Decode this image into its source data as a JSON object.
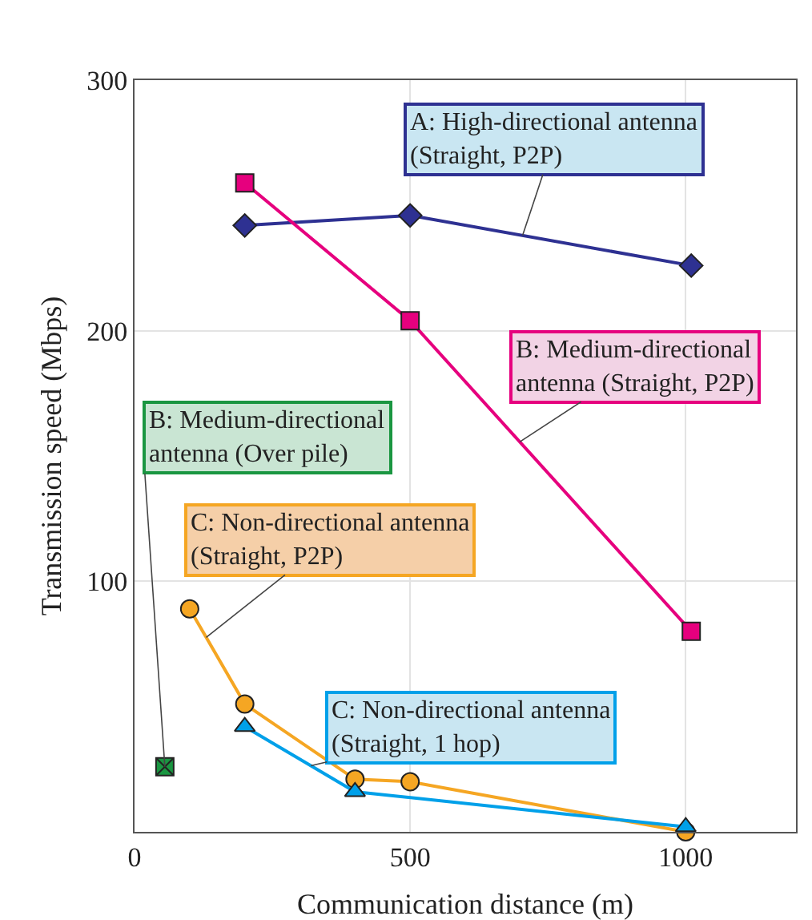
{
  "chart_data": {
    "type": "line",
    "xlabel": "Communication distance (m)",
    "ylabel": "Transmission speed (Mbps)",
    "xlim": [
      0,
      1200
    ],
    "xticks": [
      0,
      500,
      1000
    ],
    "ylim": [
      0,
      300
    ],
    "yticks": [
      100,
      200,
      300
    ],
    "grid": true,
    "legend": false,
    "series": [
      {
        "name": "A: High-directional antenna\n(Straight, P2P)",
        "color": "#2e3192",
        "marker": "diamond",
        "x": [
          200,
          500,
          1010
        ],
        "values": [
          242,
          246,
          226
        ]
      },
      {
        "name": "B: Medium-directional\nantenna (Straight, P2P)",
        "color": "#e6007e",
        "marker": "square",
        "x": [
          200,
          500,
          1010
        ],
        "values": [
          259,
          204,
          80
        ]
      },
      {
        "name": "B: Medium-directional\nantenna (Over pile)",
        "color": "#1a9641",
        "marker": "cross",
        "x": [
          55
        ],
        "values": [
          26
        ]
      },
      {
        "name": "C: Non-directional antenna\n(Straight, P2P)",
        "color": "#f5a623",
        "marker": "circle",
        "x": [
          100,
          200,
          400,
          500,
          1000
        ],
        "values": [
          89,
          51,
          21,
          20,
          0
        ]
      },
      {
        "name": "C: Non-directional antenna\n(Straight, 1 hop)",
        "color": "#00a0e9",
        "marker": "triangle",
        "x": [
          200,
          400,
          1000
        ],
        "values": [
          42,
          16,
          2
        ]
      }
    ]
  }
}
